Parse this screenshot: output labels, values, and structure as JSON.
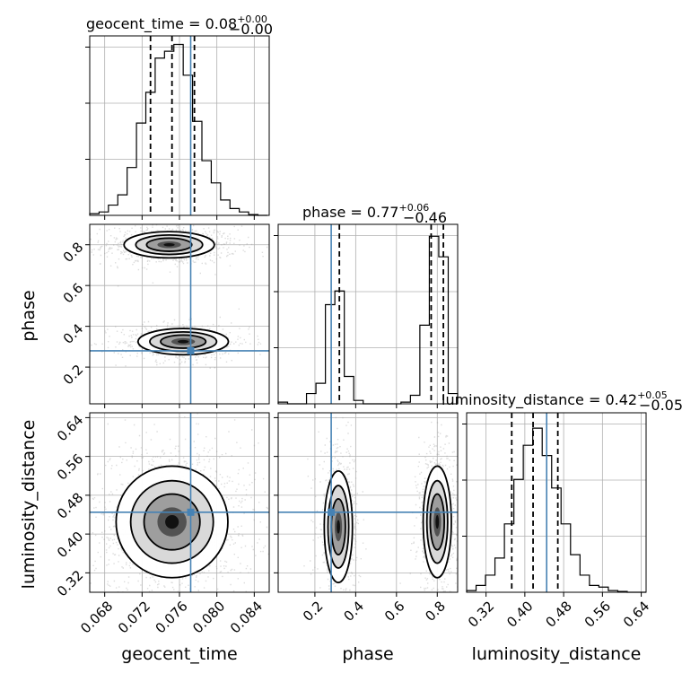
{
  "chart_data": {
    "type": "corner",
    "truth_color": "#4682b4",
    "parameters": [
      "geocent_time",
      "phase",
      "luminosity_distance"
    ],
    "truths": {
      "geocent_time": 0.0772,
      "phase": 0.28,
      "luminosity_distance": 0.445
    },
    "ranges": {
      "geocent_time": [
        0.0664,
        0.0856
      ],
      "phase": [
        0.02,
        0.9
      ],
      "luminosity_distance": [
        0.28,
        0.65
      ]
    },
    "ticks": {
      "geocent_time": [
        "0.068",
        "0.072",
        "0.076",
        "0.080",
        "0.084"
      ],
      "phase": [
        "0.2",
        "0.4",
        "0.6",
        "0.8"
      ],
      "luminosity_distance": [
        "0.32",
        "0.40",
        "0.48",
        "0.56",
        "0.64"
      ]
    },
    "titles": {
      "geocent_time": {
        "name": "geocent_time",
        "median": "0.08",
        "plus": "+0.00",
        "minus": "−0.00"
      },
      "phase": {
        "name": "phase",
        "median": "0.77",
        "plus": "+0.06",
        "minus": "−0.46"
      },
      "luminosity_distance": {
        "name": "luminosity_distance",
        "median": "0.42",
        "plus": "+0.05",
        "minus": "−0.05"
      }
    },
    "quantiles": {
      "geocent_time": [
        0.0729,
        0.0752,
        0.0776
      ],
      "phase": [
        0.32,
        0.77,
        0.83
      ],
      "luminosity_distance": [
        0.373,
        0.417,
        0.468
      ]
    },
    "histograms": {
      "geocent_time": {
        "edges": [
          0.0664,
          0.0674,
          0.0684,
          0.0694,
          0.0704,
          0.0714,
          0.0724,
          0.0734,
          0.0744,
          0.0754,
          0.0764,
          0.0774,
          0.0784,
          0.0794,
          0.0804,
          0.0814,
          0.0824,
          0.0834,
          0.0844,
          0.0854
        ],
        "counts": [
          0.01,
          0.02,
          0.06,
          0.12,
          0.28,
          0.54,
          0.72,
          0.92,
          0.96,
          1.0,
          0.82,
          0.55,
          0.32,
          0.19,
          0.09,
          0.04,
          0.02,
          0.005,
          0.0
        ]
      },
      "phase": {
        "edges": [
          0.02,
          0.0663,
          0.1126,
          0.1589,
          0.2053,
          0.2516,
          0.2979,
          0.3442,
          0.3905,
          0.4368,
          0.4832,
          0.5295,
          0.5758,
          0.6221,
          0.6684,
          0.7147,
          0.7611,
          0.8074,
          0.8537,
          0.9
        ],
        "counts": [
          0.01,
          0.0,
          0.0,
          0.06,
          0.12,
          0.58,
          0.66,
          0.16,
          0.02,
          0.0,
          0.0,
          0.0,
          0.0,
          0.01,
          0.05,
          0.46,
          0.98,
          0.86,
          0.06
        ]
      },
      "luminosity_distance": {
        "edges": [
          0.28,
          0.2995,
          0.3189,
          0.3384,
          0.3579,
          0.3774,
          0.3968,
          0.4163,
          0.4358,
          0.4553,
          0.4747,
          0.4942,
          0.5137,
          0.5332,
          0.5526,
          0.5721,
          0.5916,
          0.6111,
          0.6305,
          0.65
        ],
        "counts": [
          0.01,
          0.04,
          0.1,
          0.2,
          0.4,
          0.66,
          0.86,
          0.96,
          0.8,
          0.61,
          0.4,
          0.22,
          0.1,
          0.04,
          0.03,
          0.01,
          0.005,
          0.0,
          0.0
        ]
      }
    },
    "modes_2d": {
      "phase_vs_geocent_time": [
        {
          "cx": 0.0749,
          "cy": 0.8,
          "sx": 0.0021,
          "sy": 0.028,
          "weight": 0.6
        },
        {
          "cx": 0.0764,
          "cy": 0.325,
          "sx": 0.0021,
          "sy": 0.028,
          "weight": 0.4
        }
      ],
      "luminosity_distance_vs_geocent_time": [
        {
          "cx": 0.0752,
          "cy": 0.425,
          "sx": 0.0026,
          "sy": 0.05,
          "weight": 1.0
        }
      ],
      "luminosity_distance_vs_phase": [
        {
          "cx": 0.315,
          "cy": 0.415,
          "sx": 0.03,
          "sy": 0.05,
          "weight": 0.45
        },
        {
          "cx": 0.8,
          "cy": 0.425,
          "sx": 0.03,
          "sy": 0.05,
          "weight": 0.55
        }
      ]
    }
  }
}
